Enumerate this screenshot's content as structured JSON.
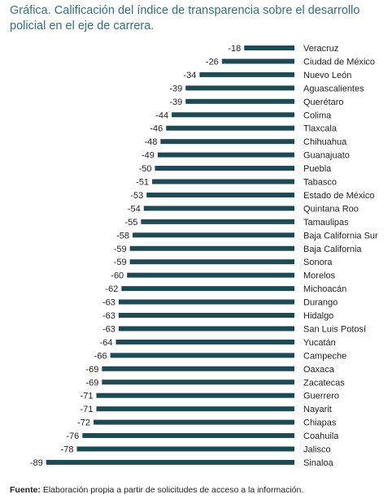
{
  "title": "Gráfica. Calificación del índice de transparencia sobre el desarrollo policial en el eje de carrera.",
  "source_label": "Fuente:",
  "source_text": " Elaboración propia a partir de solicitudes de acceso a la información.",
  "colors": {
    "bar": "#1c4a57",
    "title": "#2f6f86",
    "grid": "#d0d0d0"
  },
  "chart_data": {
    "type": "bar",
    "orientation": "horizontal",
    "title": "Gráfica. Calificación del índice de transparencia sobre el desarrollo policial en el eje de carrera.",
    "xlabel": "",
    "ylabel": "",
    "xlim": [
      -90,
      0
    ],
    "grid": false,
    "categories": [
      "Veracruz",
      "Ciudad de México",
      "Nuevo León",
      "Aguascalientes",
      "Querétaro",
      "Colima",
      "Tlaxcala",
      "Chihuahua",
      "Guanajuato",
      "Puebla",
      "Tabasco",
      "Estado de México",
      "Quintana Roo",
      "Tamaulipas",
      "Baja California Sur",
      "Baja California",
      "Sonora",
      "Morelos",
      "Michoacán",
      "Durango",
      "Hidalgo",
      "San Luis Potosí",
      "Yucatán",
      "Campeche",
      "Oaxaca",
      "Zacatecas",
      "Guerrero",
      "Nayarit",
      "Chiapas",
      "Coahuila",
      "Jalisco",
      "Sinaloa"
    ],
    "values": [
      -18,
      -26,
      -34,
      -39,
      -39,
      -44,
      -46,
      -48,
      -49,
      -50,
      -51,
      -53,
      -54,
      -55,
      -58,
      -59,
      -59,
      -60,
      -62,
      -63,
      -63,
      -63,
      -64,
      -66,
      -69,
      -69,
      -71,
      -71,
      -72,
      -76,
      -78,
      -89
    ],
    "data_labels": [
      "-18",
      "-26",
      "-34",
      "-39",
      "-39",
      "-44",
      "-46",
      "-48",
      "-49",
      "-50",
      "-51",
      "-53",
      "-54",
      "-55",
      "-58",
      "-59",
      "-59",
      "-60",
      "-62",
      "-63",
      "-63",
      "-63",
      "-64",
      "-66",
      "-69",
      "-69",
      "-71",
      "-71",
      "-72",
      "-76",
      "-78",
      "-89"
    ]
  }
}
